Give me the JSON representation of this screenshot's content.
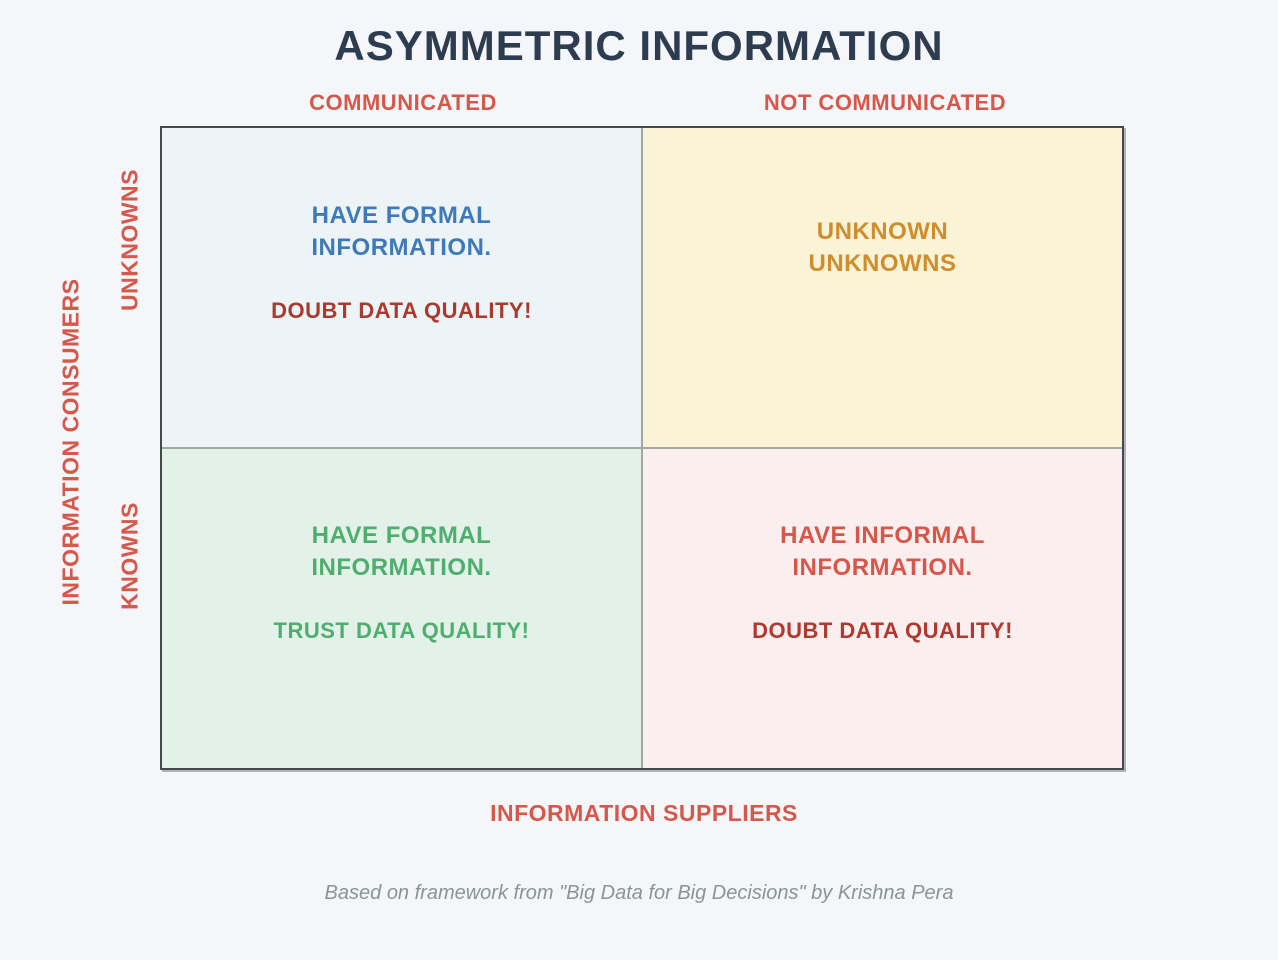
{
  "title": "ASYMMETRIC INFORMATION",
  "colors": {
    "title": "#2d3d4f",
    "axis_label_red": "#d6584a",
    "grid_border": "#45494d",
    "grid_divider": "#a2a7a4",
    "footer_gray": "#8a9496"
  },
  "axes": {
    "top_left_column": "COMMUNICATED",
    "top_right_column": "NOT COMMUNICATED",
    "left_outer": "INFORMATION CONSUMERS",
    "left_top_row": "UNKNOWNS",
    "left_bottom_row": "KNOWNS",
    "bottom": "INFORMATION SUPPLIERS"
  },
  "quadrants": {
    "top_left": {
      "heading_line1": "HAVE FORMAL",
      "heading_line2": "INFORMATION.",
      "subtext": "DOUBT DATA QUALITY!",
      "bg": "#edf4f8",
      "heading_color": "#3e7ab8",
      "subtext_color": "#a93a2d"
    },
    "top_right": {
      "heading_line1": "UNKNOWN",
      "heading_line2": "UNKNOWNS",
      "bg": "#faf3d6",
      "heading_color": "#cf8d2e"
    },
    "bottom_left": {
      "heading_line1": "HAVE FORMAL",
      "heading_line2": "INFORMATION.",
      "subtext": "TRUST DATA QUALITY!",
      "bg": "#e3f2e9",
      "heading_color": "#4fae6d",
      "subtext_color": "#4fae6d"
    },
    "bottom_right": {
      "heading_line1": "HAVE INFORMAL",
      "heading_line2": "INFORMATION.",
      "subtext": "DOUBT DATA QUALITY!",
      "bg": "#faeeee",
      "heading_color": "#d5574a",
      "subtext_color": "#b03a30"
    }
  },
  "footer": "Based on framework from \"Big Data for Big Decisions\" by Krishna Pera"
}
